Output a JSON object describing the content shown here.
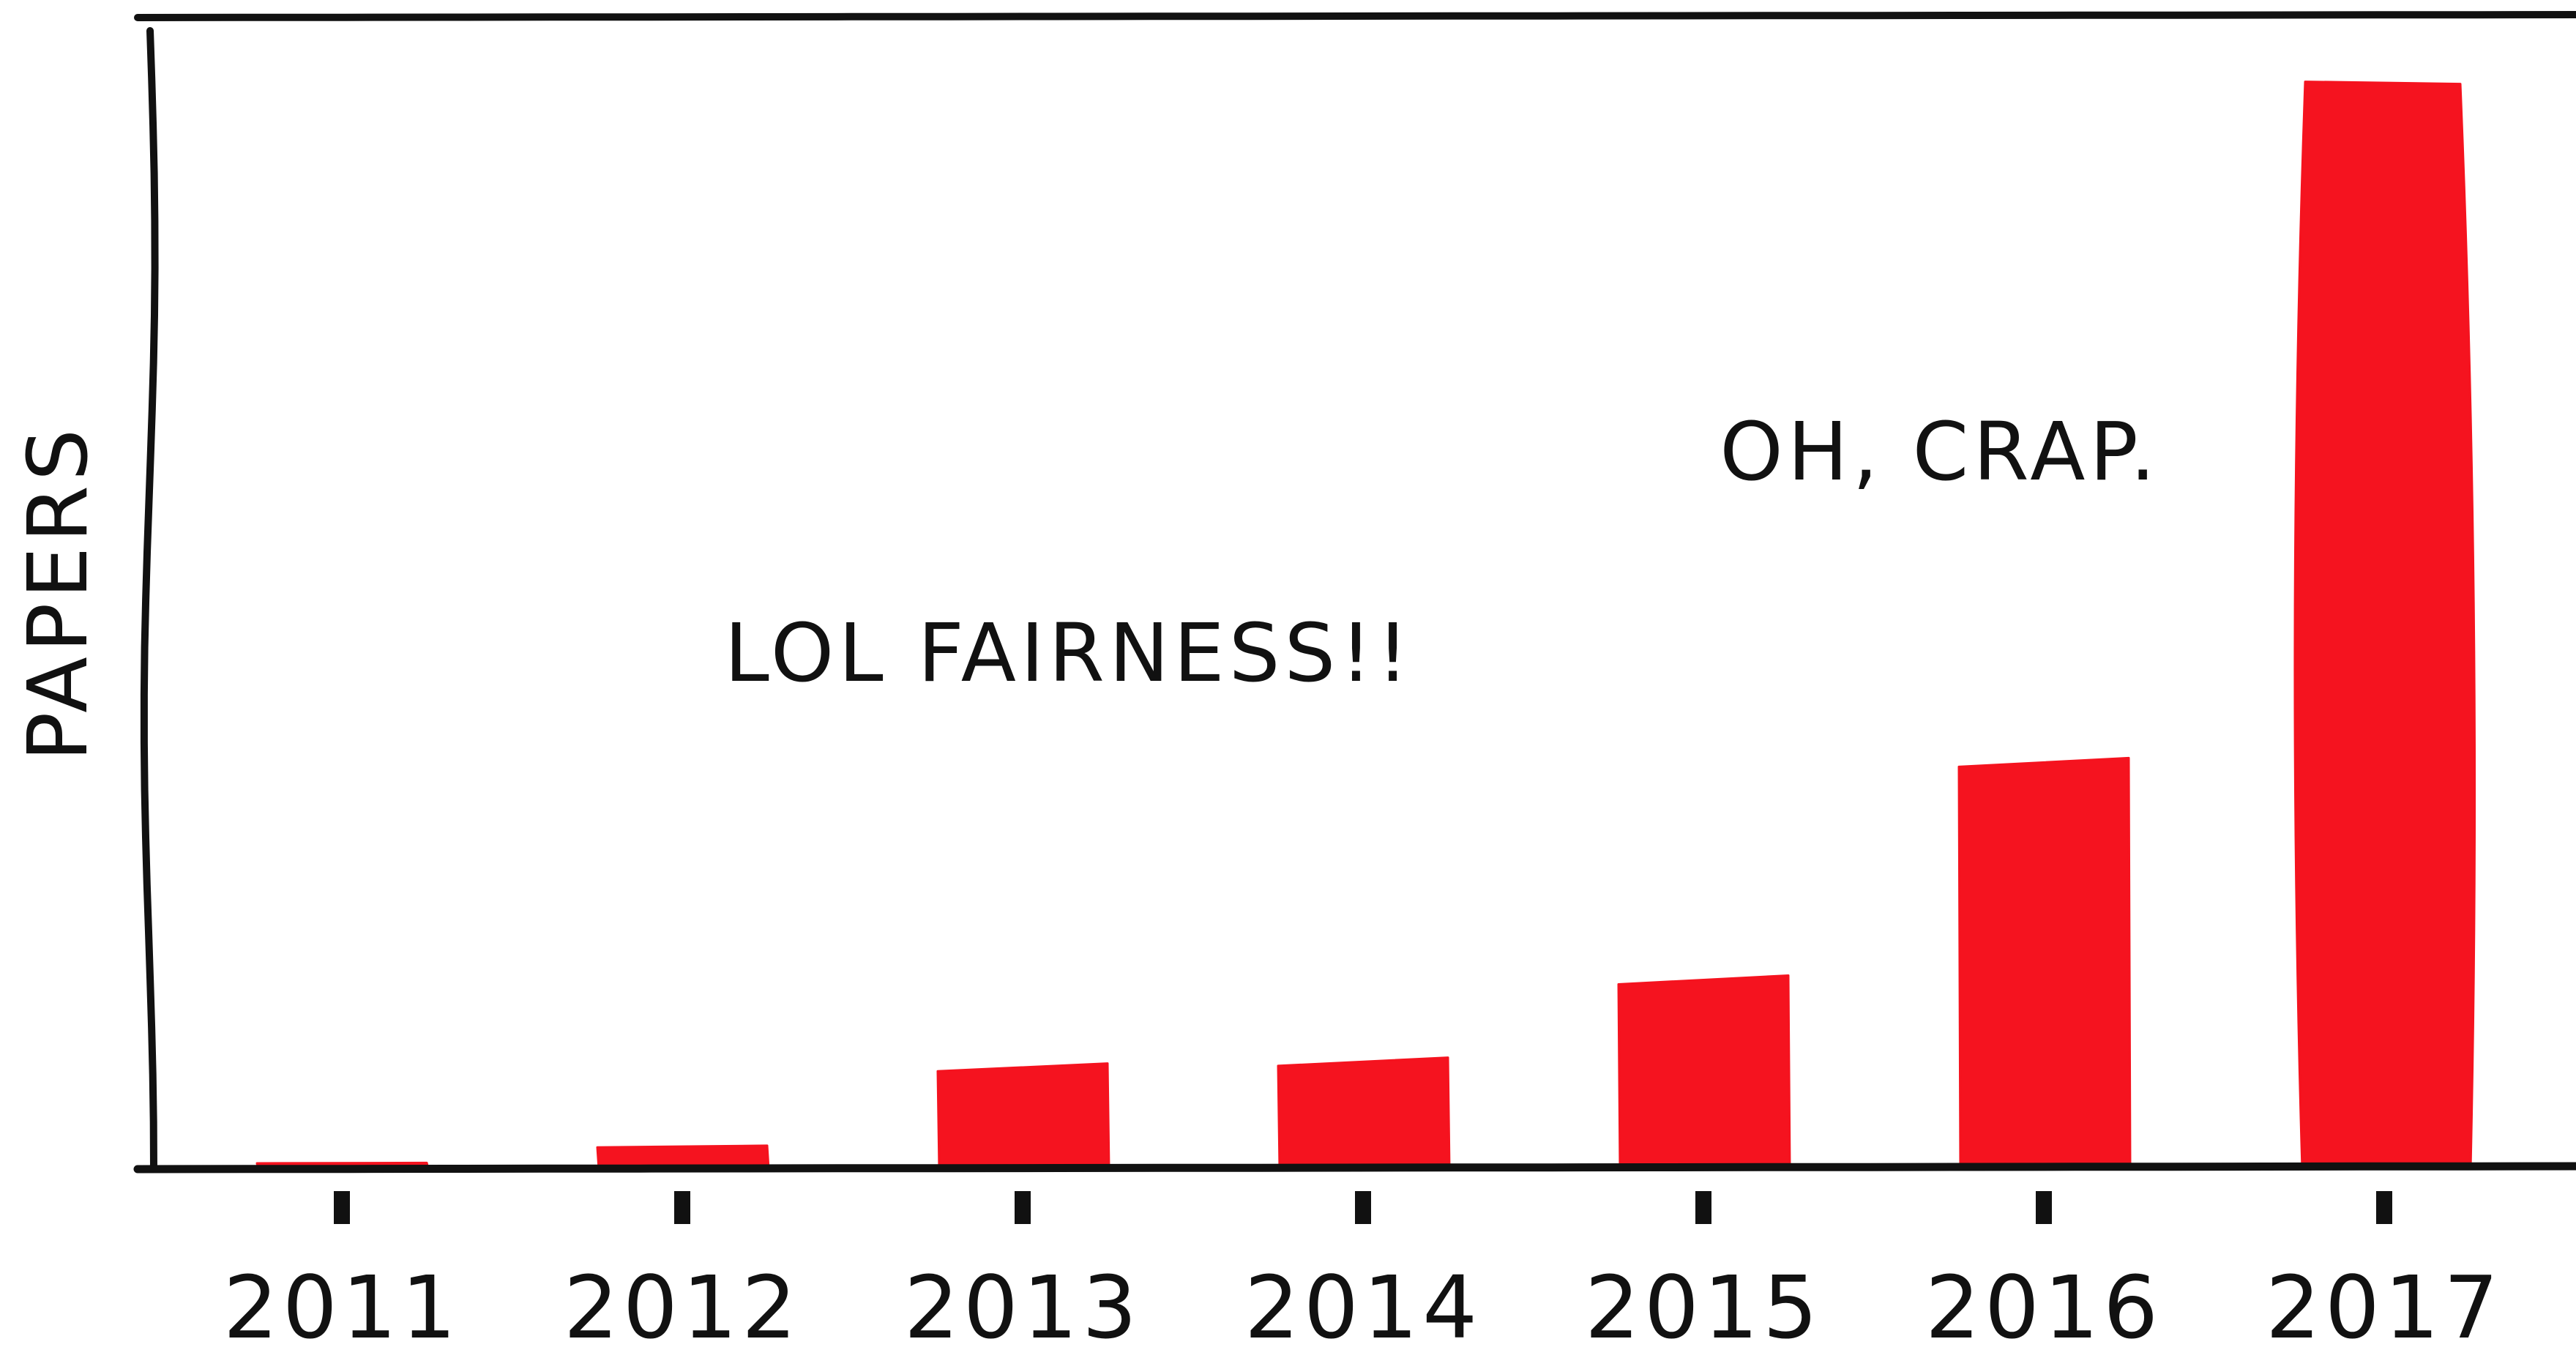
{
  "chart_data": {
    "type": "bar",
    "title": "",
    "xlabel": "",
    "ylabel": "PAPERS",
    "categories": [
      "2011",
      "2012",
      "2013",
      "2014",
      "2015",
      "2016",
      "2017"
    ],
    "values": [
      0.5,
      2,
      9,
      9.5,
      17,
      37,
      100
    ],
    "ylim": [
      0,
      103
    ],
    "grid": false,
    "y_ticks_shown": false,
    "bar_color": "#f5131f",
    "line_color": "#111111",
    "annotations": [
      {
        "text": "LOL FAIRNESS!!",
        "near_category": "2013"
      },
      {
        "text": "OH, CRAP.",
        "near_category": "2016"
      }
    ]
  }
}
